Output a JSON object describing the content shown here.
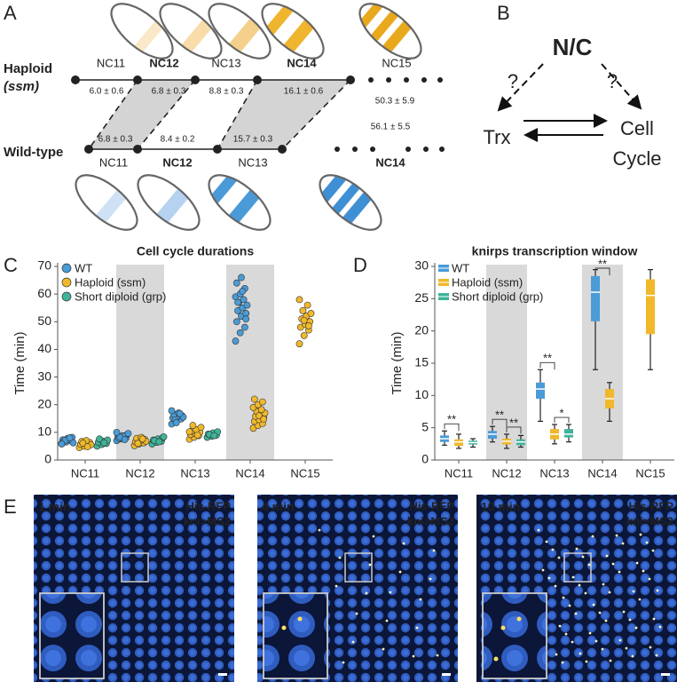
{
  "panel_labels": [
    "A",
    "B",
    "C",
    "D",
    "E"
  ],
  "panel_a": {
    "haploid_label": "Haploid",
    "haploid_genotype": "(ssm)",
    "wildtype_label": "Wild-type",
    "haploid_stages": [
      "NC11",
      "NC12",
      "NC13",
      "NC14",
      "NC15"
    ],
    "haploid_durations": [
      "6.0 ± 0.6",
      "6.8 ± 0.3",
      "8.8 ± 0.3",
      "16.1 ± 0.6",
      "50.3 ± 5.9"
    ],
    "wildtype_stages": [
      "NC11",
      "NC12",
      "NC13",
      "NC14"
    ],
    "wildtype_durations": [
      "6.8 ± 0.3",
      "8.4 ± 0.2",
      "15.7 ± 0.3",
      "56.1 ± 5.5"
    ]
  },
  "panel_b": {
    "top": "N/C",
    "question_left": "?",
    "question_right": "?",
    "left": "Trx",
    "right_line1": "Cell",
    "right_line2": "Cycle"
  },
  "chart_data": [
    {
      "type": "strip",
      "title": "Cell cycle durations",
      "y_label": "Time (min)",
      "categories": [
        "NC11",
        "NC12",
        "NC13",
        "NC14",
        "NC15"
      ],
      "shaded": [
        false,
        true,
        false,
        true,
        false
      ],
      "ylim": [
        0,
        70
      ],
      "yticks": [
        0,
        10,
        20,
        30,
        40,
        50,
        60,
        70
      ],
      "series": [
        {
          "name": "WT",
          "color": "#4a9bd6",
          "values": [
            [
              6.0,
              6.5,
              7.0,
              7.3,
              7.8,
              8.2,
              6.8,
              7.5,
              6.2,
              7.1,
              8.0,
              5.8
            ],
            [
              7.0,
              7.6,
              8.0,
              8.4,
              8.8,
              9.2,
              7.8,
              8.6,
              9.6,
              8.2,
              7.4,
              10.0
            ],
            [
              13.0,
              14.0,
              14.8,
              15.2,
              15.7,
              16.0,
              16.5,
              17.0,
              15.5,
              14.5,
              16.8,
              17.8,
              13.5
            ],
            [
              43,
              46,
              48,
              50,
              52,
              53,
              54,
              55,
              56,
              57,
              58,
              59,
              60,
              62,
              64,
              66,
              51,
              57,
              61
            ],
            []
          ]
        },
        {
          "name": "Haploid (ssm)",
          "color": "#f0b82a",
          "values": [
            [
              4.5,
              5.0,
              5.3,
              5.7,
              6.0,
              6.3,
              6.7,
              7.0,
              5.5,
              6.1,
              4.8
            ],
            [
              5.2,
              5.8,
              6.2,
              6.6,
              7.0,
              7.4,
              7.8,
              8.2,
              6.8,
              6.0,
              7.6
            ],
            [
              7.5,
              8.2,
              8.8,
              9.2,
              9.6,
              10.0,
              10.5,
              11.0,
              11.8,
              12.5,
              9.0,
              10.2
            ],
            [
              11.5,
              12.5,
              13.2,
              14.0,
              14.6,
              15.2,
              15.8,
              16.4,
              17.0,
              17.6,
              18.2,
              19.0,
              20.0,
              21.0,
              22.0,
              16.0,
              14.8
            ],
            [
              42,
              45,
              47,
              48,
              49,
              50,
              51,
              52,
              53,
              54,
              56,
              58,
              50.5,
              48.5
            ]
          ]
        },
        {
          "name": "Short diploid (grp)",
          "color": "#3fb39a",
          "values": [
            [
              5.0,
              5.6,
              6.0,
              6.4,
              6.8,
              7.2,
              7.6,
              6.2
            ],
            [
              5.8,
              6.4,
              6.8,
              7.2,
              7.6,
              8.0,
              7.0,
              6.6,
              8.4
            ],
            [
              8.2,
              8.6,
              9.0,
              9.4,
              9.8,
              10.2,
              9.2,
              8.8
            ],
            [],
            []
          ]
        }
      ]
    },
    {
      "type": "box",
      "title": "knirps transcription window",
      "y_label": "Time (min)",
      "categories": [
        "NC11",
        "NC12",
        "NC13",
        "NC14",
        "NC15"
      ],
      "shaded": [
        false,
        true,
        false,
        true,
        false
      ],
      "ylim": [
        0,
        30
      ],
      "yticks": [
        0,
        5,
        10,
        15,
        20,
        25,
        30
      ],
      "series": [
        {
          "name": "WT",
          "color": "#4a9bd6",
          "values": [
            {
              "min": 2.3,
              "q1": 2.8,
              "median": 3.3,
              "q3": 3.8,
              "max": 4.5
            },
            {
              "min": 2.8,
              "q1": 3.3,
              "median": 4.0,
              "q3": 4.5,
              "max": 5.2
            },
            {
              "min": 6.0,
              "q1": 9.5,
              "median": 11.0,
              "q3": 12.0,
              "max": 14.0
            },
            {
              "min": 14.0,
              "q1": 21.5,
              "median": 26.0,
              "q3": 28.5,
              "max": 29.5
            },
            null
          ]
        },
        {
          "name": "Haploid (ssm)",
          "color": "#f0b82a",
          "values": [
            {
              "min": 1.8,
              "q1": 2.2,
              "median": 2.8,
              "q3": 3.2,
              "max": 4.0
            },
            {
              "min": 1.8,
              "q1": 2.4,
              "median": 2.9,
              "q3": 3.3,
              "max": 4.0
            },
            {
              "min": 2.5,
              "q1": 3.2,
              "median": 4.0,
              "q3": 4.8,
              "max": 5.5
            },
            {
              "min": 6.0,
              "q1": 8.0,
              "median": 9.5,
              "q3": 11.0,
              "max": 12.0
            },
            {
              "min": 14.0,
              "q1": 19.5,
              "median": 25.5,
              "q3": 28.0,
              "max": 29.5
            }
          ]
        },
        {
          "name": "Short diploid (grp)",
          "color": "#3fb39a",
          "values": [
            {
              "min": 2.0,
              "q1": 2.4,
              "median": 2.7,
              "q3": 3.0,
              "max": 3.3
            },
            {
              "min": 2.0,
              "q1": 2.3,
              "median": 2.8,
              "q3": 3.2,
              "max": 3.8
            },
            {
              "min": 2.8,
              "q1": 3.5,
              "median": 4.0,
              "q3": 4.8,
              "max": 5.5
            },
            null,
            null
          ]
        }
      ],
      "significance": [
        {
          "label": "**",
          "category": 0,
          "pair": [
            0,
            1
          ]
        },
        {
          "label": "**",
          "category": 1,
          "pair": [
            0,
            1
          ]
        },
        {
          "label": "**",
          "category": 1,
          "pair": [
            1,
            2
          ]
        },
        {
          "label": "**",
          "category": 2,
          "pair": [
            0,
            1
          ]
        },
        {
          "label": "*",
          "category": 2,
          "pair": [
            1,
            2
          ]
        },
        {
          "label": "**",
          "category": 3,
          "pair": [
            0,
            1
          ]
        }
      ]
    }
  ],
  "panel_e": {
    "images": [
      {
        "time": "1 min"
      },
      {
        "time": "4 min"
      },
      {
        "time": "10 min"
      }
    ],
    "channel_1": "His-RFP",
    "channel_2": "kni>MS2"
  }
}
